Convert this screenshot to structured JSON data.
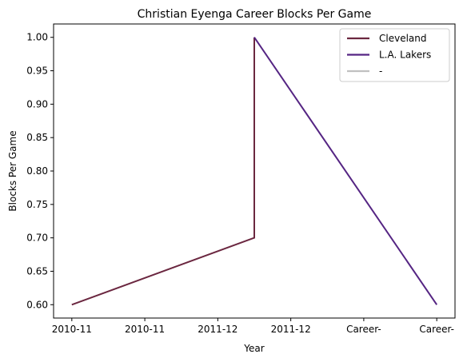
{
  "chart_data": {
    "type": "line",
    "title": "Christian Eyenga Career Blocks Per Game",
    "xlabel": "Year",
    "ylabel": "Blocks Per Game",
    "categories": [
      "2010-11",
      "2010-11",
      "2011-12",
      "2011-12",
      "Career-",
      "Career-"
    ],
    "x_positions": [
      0,
      1,
      2,
      3,
      4,
      5
    ],
    "ylim": [
      0.58,
      1.02
    ],
    "yticks": [
      0.6,
      0.65,
      0.7,
      0.75,
      0.8,
      0.85,
      0.9,
      0.95,
      1.0
    ],
    "ytick_labels": [
      "0.60",
      "0.65",
      "0.70",
      "0.75",
      "0.80",
      "0.85",
      "0.90",
      "0.95",
      "1.00"
    ],
    "grid": false,
    "legend_position": "top-right",
    "series": [
      {
        "name": "Cleveland",
        "color": "#6b2740",
        "points": [
          [
            0,
            0.6
          ],
          [
            2.5,
            0.7
          ],
          [
            2.5,
            1.0
          ]
        ]
      },
      {
        "name": "L.A. Lakers",
        "color": "#552583",
        "points": [
          [
            2.5,
            1.0
          ],
          [
            5,
            0.6
          ]
        ]
      },
      {
        "name": "-",
        "color": "#c0c0c0",
        "points": []
      }
    ]
  }
}
